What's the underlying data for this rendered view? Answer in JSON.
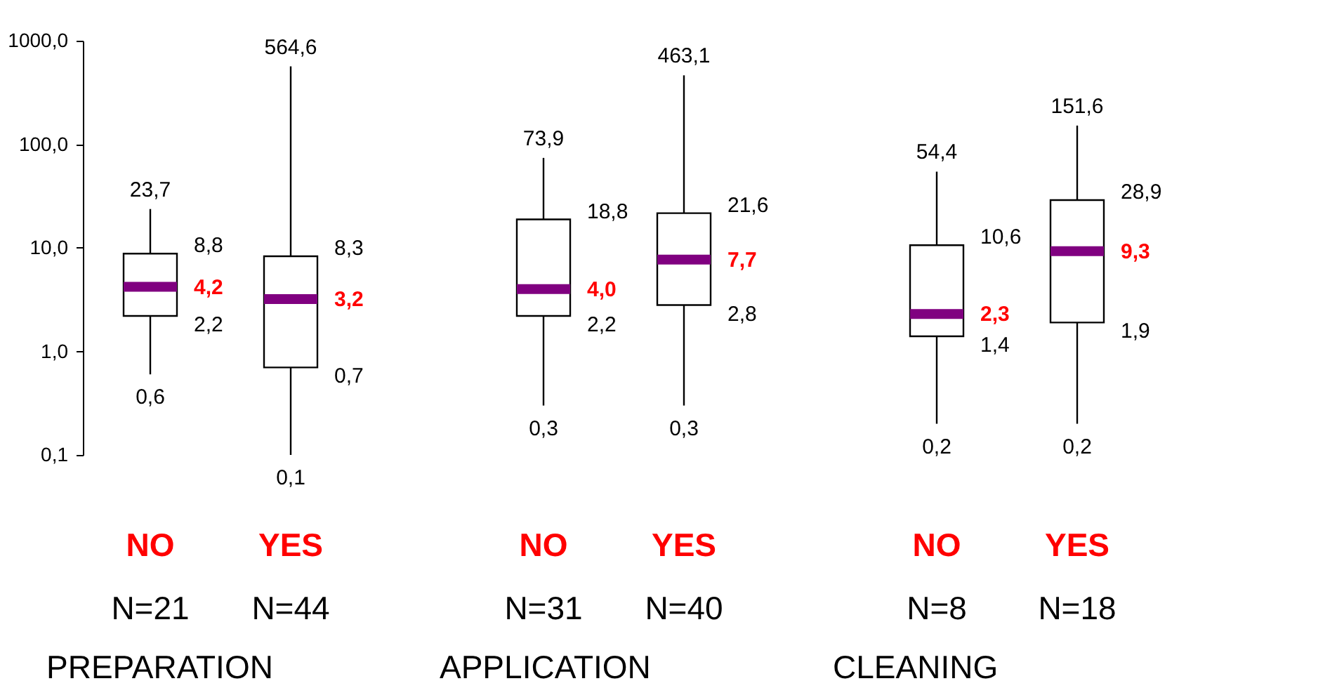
{
  "chart_data": {
    "type": "box",
    "categories": [
      "NO",
      "YES",
      "NO",
      "YES",
      "NO",
      "YES"
    ],
    "boxes": [
      {
        "low": 0.6,
        "q1": 2.2,
        "median": 4.2,
        "q3": 8.8,
        "high": 23.7
      },
      {
        "low": 0.1,
        "q1": 0.7,
        "median": 3.2,
        "q3": 8.3,
        "high": 564.6
      },
      {
        "low": 0.3,
        "q1": 2.2,
        "median": 4.0,
        "q3": 18.8,
        "high": 73.9
      },
      {
        "low": 0.3,
        "q1": 2.8,
        "median": 7.7,
        "q3": 21.6,
        "high": 463.1
      },
      {
        "low": 0.2,
        "q1": 1.4,
        "median": 2.3,
        "q3": 10.6,
        "high": 54.4
      },
      {
        "low": 0.2,
        "q1": 1.9,
        "median": 9.3,
        "q3": 28.9,
        "high": 151.6
      }
    ],
    "log": true,
    "ylim": [
      0.1,
      1000
    ],
    "yticks": [
      {
        "value": 0.1,
        "label": "0,1"
      },
      {
        "value": 1,
        "label": "1,0"
      },
      {
        "value": 10,
        "label": "10,0"
      },
      {
        "value": 100,
        "label": "100,0"
      },
      {
        "value": 1000,
        "label": "1000,0"
      }
    ],
    "grid": false,
    "annotations": [
      "23,7",
      "8,8",
      "4,2",
      "2,2",
      "0,6",
      "564,6",
      "8,3",
      "3,2",
      "0,7",
      "0,1",
      "73,9",
      "18,8",
      "4,0",
      "2,2",
      "0,3",
      "463,1",
      "21,6",
      "7,7",
      "2,8",
      "0,3",
      "54,4",
      "10,6",
      "2,3",
      "1,4",
      "0,2",
      "151,6",
      "28,9",
      "9,3",
      "1,9",
      "0,2",
      "N=21",
      "N=44",
      "N=31",
      "N=40",
      "N=8",
      "N=18",
      "PREPARATION",
      "APPLICATION",
      "CLEANING"
    ]
  }
}
